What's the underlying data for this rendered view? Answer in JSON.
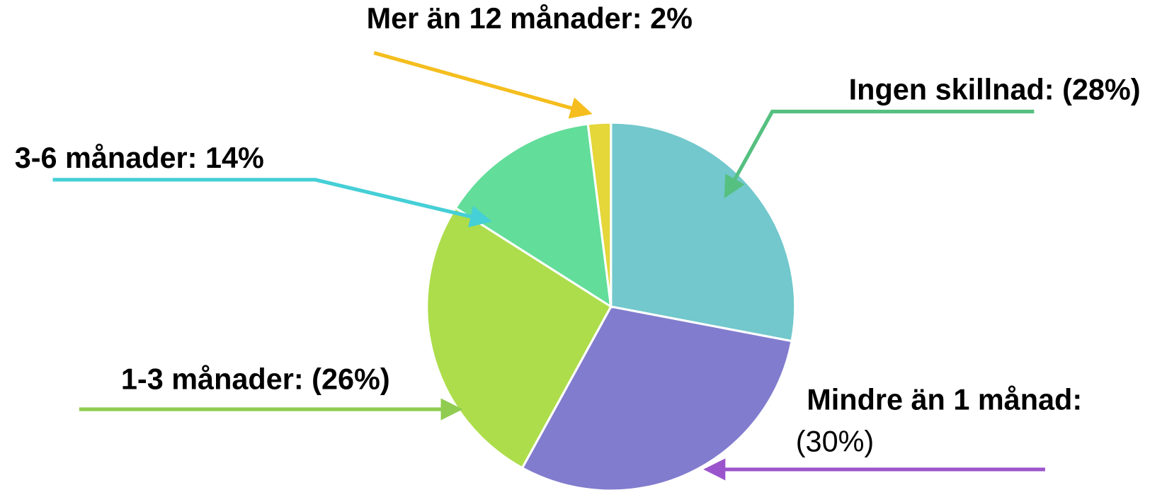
{
  "chart_data": {
    "type": "pie",
    "categories": [
      "Ingen skillnad:",
      "Mindre än 1 månad:",
      "1-3 månader:",
      "3-6 månader:",
      "Mer än 12 månader:"
    ],
    "values": [
      28,
      30,
      26,
      14,
      2
    ],
    "value_labels": [
      "(28%)",
      "(30%)",
      "(26%)",
      "14%",
      "2%"
    ],
    "colors": [
      "#72c8cc",
      "#827cce",
      "#addd4b",
      "#62dd9a",
      "#e5d63a"
    ]
  }
}
